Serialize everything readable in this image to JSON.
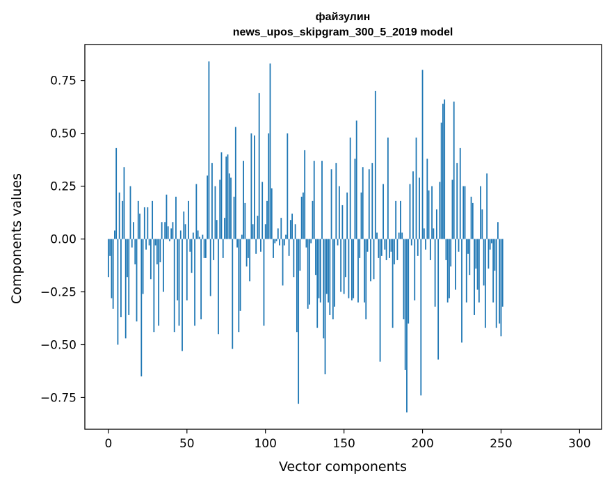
{
  "chart_data": {
    "type": "bar",
    "title": "файзулин",
    "subtitle": "news_upos_skipgram_300_5_2019 model",
    "xlabel": "Vector components",
    "ylabel": "Components values",
    "xlim": [
      -15,
      314
    ],
    "ylim": [
      -0.9,
      0.92
    ],
    "xticks": [
      0,
      50,
      100,
      150,
      200,
      250,
      300
    ],
    "yticks": [
      -0.75,
      -0.5,
      -0.25,
      0.0,
      0.25,
      0.5,
      0.75
    ],
    "ytick_labels": [
      "−0.75",
      "−0.50",
      "−0.25",
      "0.00",
      "0.25",
      "0.50",
      "0.75"
    ],
    "xtick_labels": [
      "0",
      "50",
      "100",
      "150",
      "200",
      "250",
      "300"
    ],
    "grid": false,
    "bar_color": "#1f77b4",
    "values": [
      -0.18,
      -0.08,
      -0.28,
      -0.33,
      0.04,
      0.43,
      -0.5,
      0.22,
      -0.37,
      0.18,
      0.34,
      -0.47,
      -0.18,
      -0.36,
      0.25,
      -0.04,
      0.08,
      -0.12,
      -0.39,
      0.18,
      0.12,
      -0.65,
      -0.26,
      0.15,
      -0.05,
      0.15,
      -0.03,
      -0.19,
      0.18,
      -0.44,
      -0.03,
      -0.12,
      -0.41,
      -0.11,
      0.08,
      -0.25,
      0.08,
      0.21,
      0.06,
      -0.01,
      0.05,
      0.08,
      -0.44,
      0.2,
      -0.29,
      -0.41,
      0.04,
      -0.53,
      0.13,
      0.07,
      -0.29,
      0.18,
      -0.06,
      -0.16,
      0.03,
      -0.41,
      0.26,
      0.04,
      0.01,
      -0.38,
      0.02,
      -0.09,
      -0.09,
      0.3,
      0.84,
      -0.27,
      0.36,
      -0.1,
      0.25,
      0.09,
      -0.45,
      0.28,
      0.41,
      -0.09,
      0.1,
      0.39,
      0.4,
      0.31,
      0.29,
      -0.52,
      0.2,
      0.53,
      -0.04,
      -0.44,
      -0.34,
      0.02,
      0.37,
      0.17,
      -0.13,
      -0.09,
      -0.2,
      0.5,
      0.07,
      0.49,
      -0.07,
      0.11,
      0.69,
      -0.06,
      0.27,
      -0.41,
      0.07,
      0.18,
      0.5,
      0.83,
      0.24,
      -0.09,
      -0.02,
      -0.01,
      0.05,
      -0.03,
      0.1,
      -0.22,
      -0.03,
      0.02,
      0.5,
      -0.08,
      0.09,
      0.12,
      -0.18,
      0.07,
      -0.44,
      -0.78,
      -0.15,
      0.2,
      0.22,
      0.42,
      -0.04,
      -0.33,
      -0.31,
      -0.02,
      0.18,
      0.37,
      -0.17,
      -0.42,
      -0.28,
      -0.3,
      0.37,
      -0.47,
      -0.64,
      -0.26,
      -0.3,
      -0.36,
      0.33,
      -0.38,
      -0.32,
      0.36,
      -0.03,
      0.25,
      -0.25,
      0.16,
      -0.26,
      -0.18,
      0.22,
      -0.28,
      0.48,
      -0.29,
      -0.28,
      0.38,
      0.56,
      -0.3,
      -0.09,
      0.22,
      0.34,
      -0.3,
      -0.38,
      -0.06,
      0.33,
      -0.2,
      0.36,
      -0.19,
      0.7,
      0.03,
      -0.09,
      -0.58,
      -0.08,
      0.26,
      -0.05,
      -0.1,
      0.48,
      -0.09,
      -0.06,
      -0.42,
      -0.12,
      0.18,
      -0.1,
      0.03,
      0.18,
      0.03,
      -0.38,
      -0.62,
      -0.82,
      -0.4,
      0.26,
      -0.03,
      0.32,
      -0.29,
      0.48,
      -0.08,
      0.29,
      -0.74,
      0.8,
      0.05,
      -0.05,
      0.38,
      0.23,
      -0.1,
      0.25,
      0.05,
      -0.32,
      0.14,
      -0.57,
      0.27,
      0.55,
      0.64,
      0.66,
      -0.1,
      -0.3,
      -0.28,
      -0.13,
      0.28,
      0.65,
      -0.24,
      0.36,
      -0.06,
      0.43,
      -0.49,
      0.25,
      0.25,
      -0.3,
      -0.07,
      -0.17,
      0.2,
      0.17,
      -0.36,
      -0.14,
      -0.24,
      -0.3,
      0.25,
      0.14,
      -0.22,
      -0.42,
      0.31,
      -0.14,
      -0.05,
      -0.02,
      -0.3,
      -0.15,
      -0.42,
      0.08,
      -0.4,
      -0.46,
      -0.32
    ]
  }
}
